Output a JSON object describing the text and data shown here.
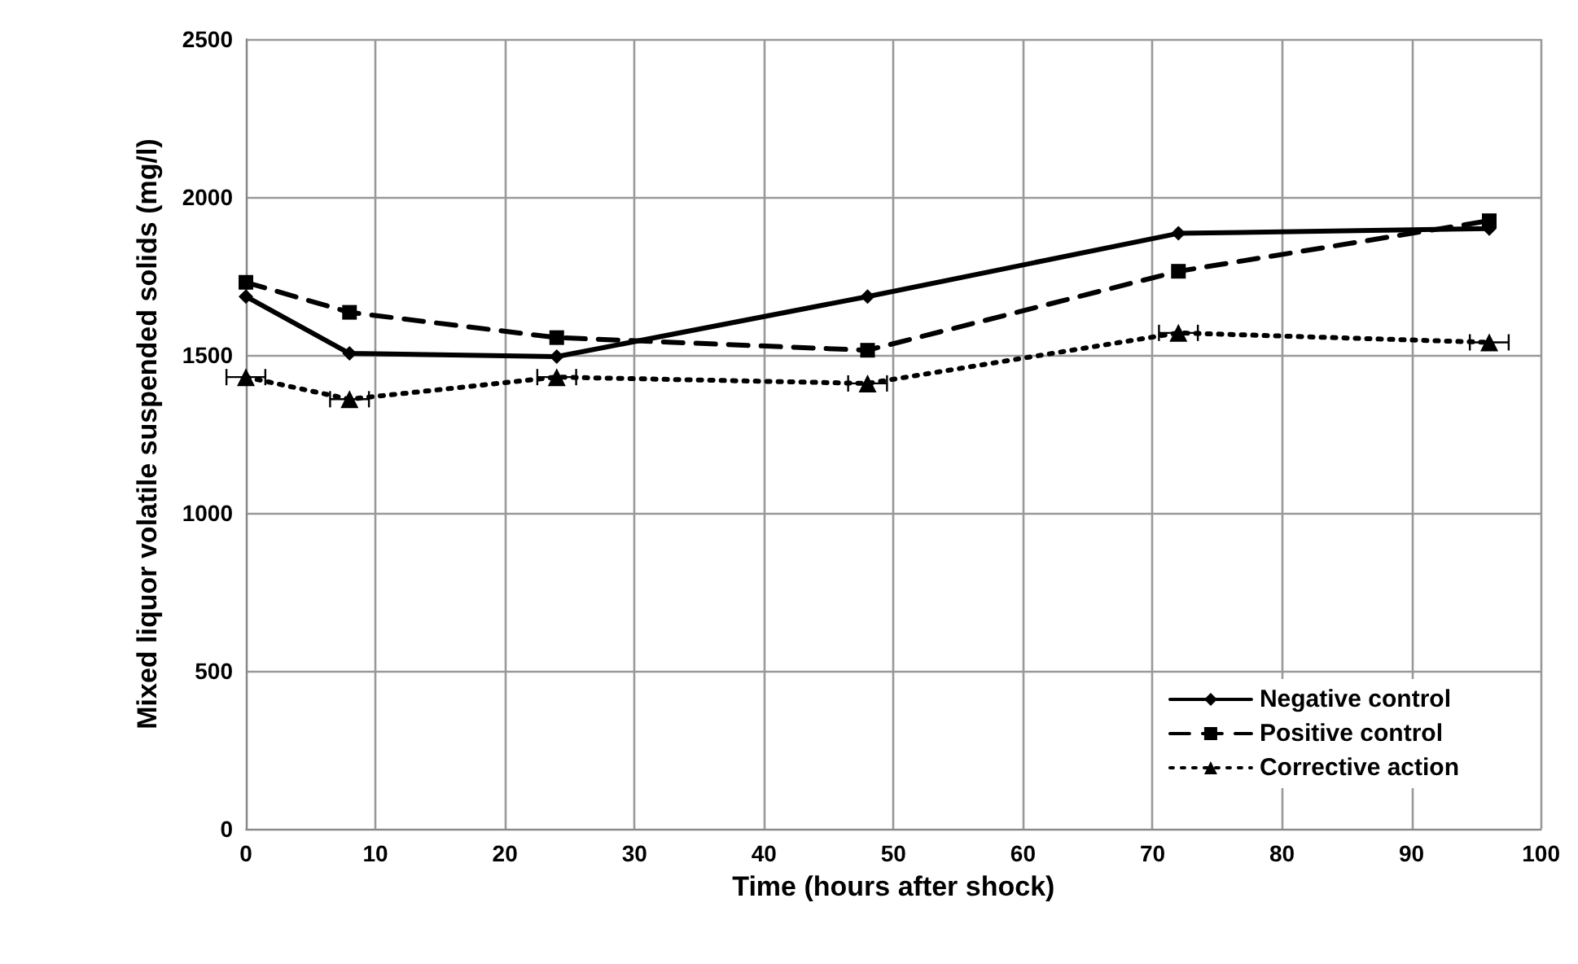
{
  "chart_data": {
    "type": "line",
    "xlabel": "Time (hours after shock)",
    "ylabel": "Mixed liquor volatile suspended solids (mg/l)",
    "x": [
      0,
      8,
      24,
      48,
      72,
      96
    ],
    "series": [
      {
        "name": "Negative control",
        "color": "#000000",
        "values": [
          1685,
          1505,
          1495,
          1685,
          1885,
          1900
        ],
        "marker": "diamond",
        "line_style": "solid"
      },
      {
        "name": "Positive control",
        "color": "#000000",
        "values": [
          1730,
          1635,
          1555,
          1515,
          1765,
          1925
        ],
        "marker": "square",
        "line_style": "dashed"
      },
      {
        "name": "Corrective action",
        "color": "#000000",
        "values": [
          1430,
          1360,
          1430,
          1410,
          1570,
          1540
        ],
        "marker": "triangle",
        "line_style": "dotted",
        "xerrors": [
          1.5,
          1.5,
          1.5,
          1.5,
          1.5,
          1.5
        ]
      }
    ],
    "xlim": [
      0,
      100
    ],
    "xticks": [
      0,
      10,
      20,
      30,
      40,
      50,
      60,
      70,
      80,
      90,
      100
    ],
    "ylim": [
      0,
      2500
    ],
    "yticks": [
      0,
      500,
      1000,
      1500,
      2000,
      2500
    ],
    "grid": true,
    "legend": "bottom right"
  }
}
